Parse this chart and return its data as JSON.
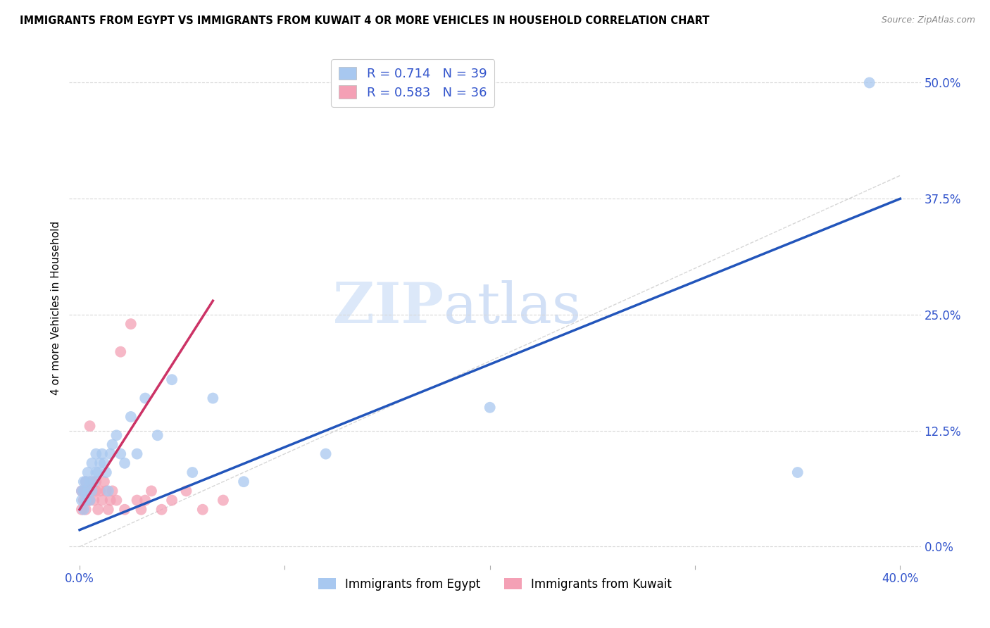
{
  "title": "IMMIGRANTS FROM EGYPT VS IMMIGRANTS FROM KUWAIT 4 OR MORE VEHICLES IN HOUSEHOLD CORRELATION CHART",
  "source": "Source: ZipAtlas.com",
  "ylabel": "4 or more Vehicles in Household",
  "xlim": [
    -0.005,
    0.41
  ],
  "ylim": [
    -0.02,
    0.535
  ],
  "xtick_positions": [
    0.0,
    0.1,
    0.2,
    0.3,
    0.4
  ],
  "xtick_labels": [
    "0.0%",
    "",
    "",
    "",
    "40.0%"
  ],
  "ytick_vals": [
    0.0,
    0.125,
    0.25,
    0.375,
    0.5
  ],
  "ytick_labels": [
    "0.0%",
    "12.5%",
    "25.0%",
    "37.5%",
    "50.0%"
  ],
  "egypt_color": "#a8c8f0",
  "kuwait_color": "#f4a0b5",
  "egypt_line_color": "#2255bb",
  "kuwait_line_color": "#cc3366",
  "diagonal_color": "#cccccc",
  "R_egypt": 0.714,
  "N_egypt": 39,
  "R_kuwait": 0.583,
  "N_kuwait": 36,
  "legend_label_egypt": "Immigrants from Egypt",
  "legend_label_kuwait": "Immigrants from Kuwait",
  "watermark_zip": "ZIP",
  "watermark_atlas": "atlas",
  "background_color": "#ffffff",
  "grid_color": "#d8d8d8",
  "text_color": "#3355cc",
  "egypt_x": [
    0.001,
    0.001,
    0.002,
    0.002,
    0.002,
    0.003,
    0.003,
    0.004,
    0.004,
    0.005,
    0.005,
    0.006,
    0.006,
    0.007,
    0.008,
    0.008,
    0.009,
    0.01,
    0.011,
    0.012,
    0.013,
    0.014,
    0.015,
    0.016,
    0.018,
    0.02,
    0.022,
    0.025,
    0.028,
    0.032,
    0.038,
    0.045,
    0.055,
    0.065,
    0.08,
    0.12,
    0.2,
    0.35,
    0.385
  ],
  "egypt_y": [
    0.05,
    0.06,
    0.04,
    0.06,
    0.07,
    0.05,
    0.07,
    0.06,
    0.08,
    0.05,
    0.07,
    0.06,
    0.09,
    0.07,
    0.08,
    0.1,
    0.08,
    0.09,
    0.1,
    0.09,
    0.08,
    0.06,
    0.1,
    0.11,
    0.12,
    0.1,
    0.09,
    0.14,
    0.1,
    0.16,
    0.12,
    0.18,
    0.08,
    0.16,
    0.07,
    0.1,
    0.15,
    0.08,
    0.5
  ],
  "kuwait_x": [
    0.001,
    0.001,
    0.002,
    0.002,
    0.003,
    0.003,
    0.004,
    0.004,
    0.005,
    0.005,
    0.006,
    0.006,
    0.007,
    0.008,
    0.008,
    0.009,
    0.01,
    0.011,
    0.012,
    0.013,
    0.014,
    0.015,
    0.016,
    0.018,
    0.02,
    0.022,
    0.025,
    0.028,
    0.03,
    0.032,
    0.035,
    0.04,
    0.045,
    0.052,
    0.06,
    0.07
  ],
  "kuwait_y": [
    0.04,
    0.06,
    0.05,
    0.06,
    0.04,
    0.07,
    0.05,
    0.06,
    0.05,
    0.13,
    0.06,
    0.07,
    0.05,
    0.06,
    0.07,
    0.04,
    0.06,
    0.05,
    0.07,
    0.06,
    0.04,
    0.05,
    0.06,
    0.05,
    0.21,
    0.04,
    0.24,
    0.05,
    0.04,
    0.05,
    0.06,
    0.04,
    0.05,
    0.06,
    0.04,
    0.05
  ],
  "egypt_line_x0": 0.0,
  "egypt_line_y0": 0.018,
  "egypt_line_x1": 0.4,
  "egypt_line_y1": 0.375,
  "kuwait_line_x0": 0.0,
  "kuwait_line_y0": 0.04,
  "kuwait_line_x1": 0.065,
  "kuwait_line_y1": 0.265
}
